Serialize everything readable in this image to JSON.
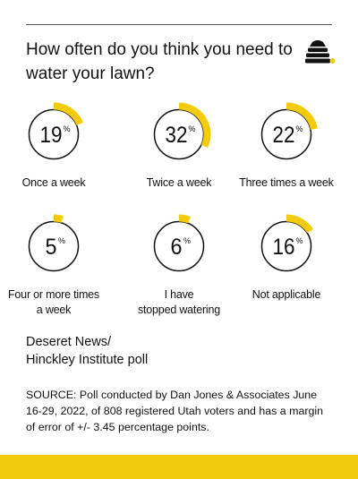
{
  "title": "How often do you think you need to water your lawn?",
  "colors": {
    "accent": "#f2cc0c",
    "ring": "#111111",
    "text": "#111111"
  },
  "logo_icon": "beehive-icon",
  "chart_data": {
    "type": "pie",
    "title": "How often do you think you need to water your lawn?",
    "unit": "%",
    "categories": [
      "Once a week",
      "Twice a week",
      "Three times a week",
      "Four or more times a week",
      "I have stopped watering",
      "Not applicable"
    ],
    "values": [
      19,
      32,
      22,
      5,
      6,
      16
    ]
  },
  "source_title": "Deseret News/\nHinckley Institute poll",
  "source_note": "SOURCE: Poll conducted by Dan Jones & Associates June 16-29, 2022, of 808 registered Utah voters and has a margin of error of +/- 3.45 percentage points."
}
